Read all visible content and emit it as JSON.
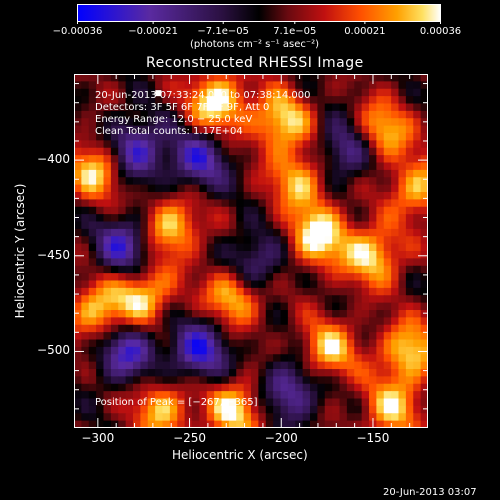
{
  "chart_data": {
    "type": "heatmap",
    "title": "Reconstructed RHESSI Image",
    "xlabel": "Heliocentric X (arcsec)",
    "ylabel": "Heliocentric Y (arcsec)",
    "xlim": [
      -313,
      -120
    ],
    "ylim": [
      -540,
      -355
    ],
    "x_ticks": [
      "−300",
      "−250",
      "−200",
      "−150"
    ],
    "x_tick_values": [
      -300,
      -250,
      -200,
      -150
    ],
    "y_ticks": [
      "−400",
      "−450",
      "−500"
    ],
    "y_tick_values": [
      -400,
      -450,
      -500
    ],
    "colorbar": {
      "min": -0.00036,
      "max": 0.00036,
      "tick_labels": [
        "−0.00036",
        "−0.00021",
        "−7.1e−05",
        "7.1e−05",
        "0.00021",
        "0.00036"
      ],
      "tick_values": [
        -0.00036,
        -0.00021,
        -7.1e-05,
        7.1e-05,
        0.00021,
        0.00036
      ],
      "unit": "(photons cm⁻² s⁻¹ asec⁻²)"
    },
    "annotations": {
      "line1": "20-Jun-2013 07:33:24.000 to 07:38:14.000",
      "line2": "Detectors: 3F 5F 6F 7F 8F 9F, Att 0",
      "line3": "Energy Range: 12.0 − 25.0 keV",
      "line4": "Clean    Total counts: 1.17E+04",
      "peak": "Position of Peak = [−267, −365]"
    },
    "peak_position": [
      -267,
      -365
    ],
    "blob_centers": [
      {
        "x": -300,
        "y": -405,
        "v": 0.0003
      },
      {
        "x": -235,
        "y": -370,
        "v": 0.00034
      },
      {
        "x": -200,
        "y": -380,
        "v": 0.0003
      },
      {
        "x": -145,
        "y": -385,
        "v": 0.00028
      },
      {
        "x": -260,
        "y": -435,
        "v": 0.0003
      },
      {
        "x": -225,
        "y": -470,
        "v": 0.00032
      },
      {
        "x": -180,
        "y": -440,
        "v": 0.00033
      },
      {
        "x": -150,
        "y": -450,
        "v": 0.0003
      },
      {
        "x": -275,
        "y": -470,
        "v": 0.0003
      },
      {
        "x": -300,
        "y": -480,
        "v": 0.00028
      },
      {
        "x": -130,
        "y": -500,
        "v": 0.0003
      },
      {
        "x": -175,
        "y": -500,
        "v": 0.00028
      },
      {
        "x": -225,
        "y": -530,
        "v": 0.0003
      },
      {
        "x": -265,
        "y": -530,
        "v": 0.00026
      },
      {
        "x": -140,
        "y": -530,
        "v": 0.00026
      },
      {
        "x": -125,
        "y": -415,
        "v": 0.00026
      },
      {
        "x": -190,
        "y": -410,
        "v": 0.00026
      }
    ],
    "trough_centers": [
      {
        "x": -280,
        "y": -395,
        "v": -0.00032
      },
      {
        "x": -285,
        "y": -445,
        "v": -0.0003
      },
      {
        "x": -245,
        "y": -400,
        "v": -0.00028
      },
      {
        "x": -165,
        "y": -395,
        "v": -0.00026
      },
      {
        "x": -245,
        "y": -500,
        "v": -0.00032
      },
      {
        "x": -285,
        "y": -500,
        "v": -0.0003
      },
      {
        "x": -195,
        "y": -520,
        "v": -0.00028
      },
      {
        "x": -215,
        "y": -455,
        "v": -0.00026
      }
    ]
  },
  "footer": {
    "timestamp": "20-Jun-2013 03:07"
  },
  "colors": {
    "background": "#000000",
    "frame": "#ffffff",
    "colormap": [
      "#0000ff",
      "#5a2aa0",
      "#3d1f6a",
      "#1a0a2a",
      "#000000",
      "#5a0a0a",
      "#b01010",
      "#ff4000",
      "#ff9000",
      "#ffd000",
      "#ffffff"
    ]
  }
}
